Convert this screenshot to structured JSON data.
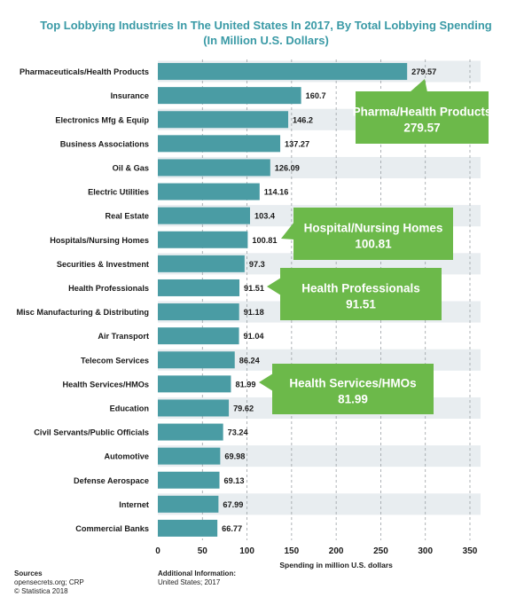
{
  "title_line1": "Top Lobbying Industries In The United States In 2017, By Total Lobbying Spending",
  "title_line2": "(In Million U.S. Dollars)",
  "chart_data": {
    "type": "bar",
    "orientation": "horizontal",
    "categories": [
      "Pharmaceuticals/Health Products",
      "Insurance",
      "Electronics Mfg & Equip",
      "Business Associations",
      "Oil & Gas",
      "Electric Utilities",
      "Real Estate",
      "Hospitals/Nursing Homes",
      "Securities & Investment",
      "Health Professionals",
      "Misc Manufacturing & Distributing",
      "Air Transport",
      "Telecom Services",
      "Health Services/HMOs",
      "Education",
      "Civil Servants/Public Officials",
      "Automotive",
      "Defense Aerospace",
      "Internet",
      "Commercial Banks"
    ],
    "values": [
      279.57,
      160.7,
      146.2,
      137.27,
      126.09,
      114.16,
      103.4,
      100.81,
      97.3,
      91.51,
      91.18,
      91.04,
      86.24,
      81.99,
      79.62,
      73.24,
      69.98,
      69.13,
      67.99,
      66.77
    ],
    "value_labels": [
      "279.57",
      "160.7",
      "146.2",
      "137.27",
      "126.09",
      "114.16",
      "103.4",
      "100.81",
      "97.3",
      "91.51",
      "91.18",
      "91.04",
      "86.24",
      "81.99",
      "79.62",
      "73.24",
      "69.98",
      "69.13",
      "67.99",
      "66.77"
    ],
    "xlabel": "Spending in million U.S. dollars",
    "xlim": [
      0,
      350
    ],
    "xticks": [
      0,
      50,
      100,
      150,
      200,
      250,
      300,
      350
    ],
    "grid": true,
    "bar_color": "#4a9ca4",
    "band_color": "#e8edf0",
    "annotations": [
      {
        "category": "Pharmaceuticals/Health Products",
        "line1": "Pharma/Health Products",
        "line2": "279.57"
      },
      {
        "category": "Hospitals/Nursing Homes",
        "line1": "Hospital/Nursing Homes",
        "line2": "100.81"
      },
      {
        "category": "Health Professionals",
        "line1": "Health Professionals",
        "line2": "91.51"
      },
      {
        "category": "Health Services/HMOs",
        "line1": "Health Services/HMOs",
        "line2": "81.99"
      }
    ],
    "annotation_color": "#6cb94a"
  },
  "footer": {
    "sources_heading": "Sources",
    "sources_line1": "opensecrets.org; CRP",
    "sources_line2": "© Statistica 2018",
    "additional_heading": "Additional Information:",
    "additional_line1": "United States; 2017"
  }
}
